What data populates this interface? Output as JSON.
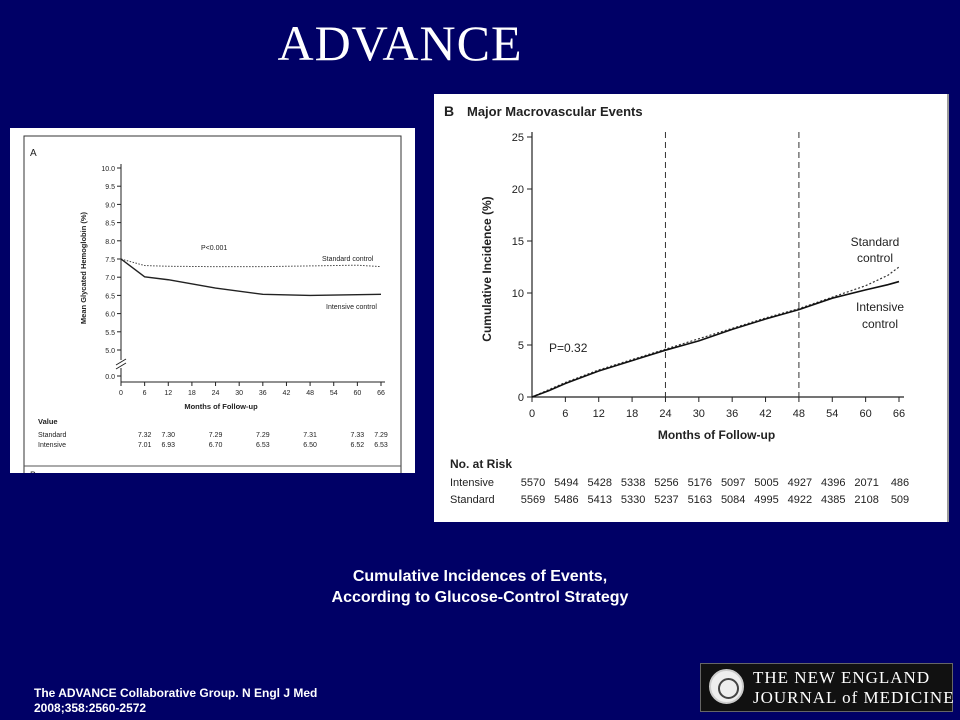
{
  "slide": {
    "title": "ADVANCE",
    "caption_line1": "Cumulative Incidences of Events,",
    "caption_line2": "According to Glucose-Control Strategy",
    "citation_line1": "The ADVANCE Collaborative Group. N Engl J Med",
    "citation_line2": "2008;358:2560-2572",
    "logo_line1": "THE NEW ENGLAND",
    "logo_line2": "JOURNAL of MEDICINE"
  },
  "colors": {
    "background": "#000066",
    "panel": "#ffffff",
    "text_light": "#ffffff",
    "ink": "#222222"
  },
  "chart_data": [
    {
      "type": "line",
      "panel_label": "A",
      "title": "",
      "xlabel": "Months of Follow-up",
      "ylabel": "Mean Glycated Hemoglobin (%)",
      "x_ticks": [
        0,
        6,
        12,
        18,
        24,
        30,
        36,
        42,
        48,
        54,
        60,
        66
      ],
      "y_ticks": [
        "0.0",
        "5.0",
        "5.5",
        "6.0",
        "6.5",
        "7.0",
        "7.5",
        "8.0",
        "8.5",
        "9.0",
        "9.5",
        "10.0"
      ],
      "y_axis_break": true,
      "ylim": [
        5.0,
        10.0
      ],
      "annotation": "P<0.001",
      "series": [
        {
          "name": "Standard control",
          "style": "dotted",
          "x": [
            0,
            6,
            12,
            24,
            36,
            48,
            60,
            66
          ],
          "values": [
            7.5,
            7.32,
            7.3,
            7.29,
            7.29,
            7.31,
            7.33,
            7.29
          ]
        },
        {
          "name": "Intensive control",
          "style": "solid",
          "x": [
            0,
            6,
            12,
            24,
            36,
            48,
            60,
            66
          ],
          "values": [
            7.5,
            7.01,
            6.93,
            6.7,
            6.53,
            6.5,
            6.52,
            6.53
          ]
        }
      ],
      "table": {
        "header": "Value",
        "rows": [
          {
            "label": "Standard",
            "cells": [
              {
                "x": 6,
                "text": "7.32"
              },
              {
                "x": 12,
                "text": "7.30"
              },
              {
                "x": 24,
                "text": "7.29"
              },
              {
                "x": 36,
                "text": "7.29"
              },
              {
                "x": 48,
                "text": "7.31"
              },
              {
                "x": 60,
                "text": "7.33"
              },
              {
                "x": 66,
                "text": "7.29"
              }
            ]
          },
          {
            "label": "Intensive",
            "cells": [
              {
                "x": 6,
                "text": "7.01"
              },
              {
                "x": 12,
                "text": "6.93"
              },
              {
                "x": 24,
                "text": "6.70"
              },
              {
                "x": 36,
                "text": "6.53"
              },
              {
                "x": 48,
                "text": "6.50"
              },
              {
                "x": 60,
                "text": "6.52"
              },
              {
                "x": 66,
                "text": "6.53"
              }
            ]
          }
        ]
      }
    },
    {
      "type": "line",
      "panel_label": "B",
      "title": "Major Macrovascular Events",
      "xlabel": "Months of Follow-up",
      "ylabel": "Cumulative Incidence (%)",
      "xlim": [
        0,
        66
      ],
      "ylim": [
        0,
        25
      ],
      "x_ticks": [
        0,
        6,
        12,
        18,
        24,
        30,
        36,
        42,
        48,
        54,
        60,
        66
      ],
      "y_ticks": [
        0,
        5,
        10,
        15,
        20,
        25
      ],
      "vlines": [
        24,
        48
      ],
      "annotation": "P=0.32",
      "series": [
        {
          "name": "Standard control",
          "style": "dotted",
          "x": [
            0,
            3,
            6,
            12,
            18,
            24,
            30,
            36,
            42,
            48,
            54,
            60,
            64,
            66
          ],
          "values": [
            0,
            0.7,
            1.4,
            2.6,
            3.6,
            4.6,
            5.6,
            6.6,
            7.6,
            8.5,
            9.6,
            10.7,
            11.7,
            12.5
          ]
        },
        {
          "name": "Intensive control",
          "style": "solid",
          "x": [
            0,
            3,
            6,
            12,
            18,
            24,
            30,
            36,
            42,
            48,
            54,
            60,
            64,
            66
          ],
          "values": [
            0,
            0.6,
            1.3,
            2.5,
            3.5,
            4.5,
            5.4,
            6.5,
            7.5,
            8.4,
            9.5,
            10.3,
            10.8,
            11.1
          ]
        }
      ],
      "at_risk": {
        "header": "No. at Risk",
        "rows": [
          {
            "label": "Intensive",
            "values": [
              "5570",
              "5494",
              "5428",
              "5338",
              "5256",
              "5176",
              "5097",
              "5005",
              "4927",
              "4396",
              "2071",
              "486"
            ]
          },
          {
            "label": "Standard",
            "values": [
              "5569",
              "5486",
              "5413",
              "5330",
              "5237",
              "5163",
              "5084",
              "4995",
              "4922",
              "4385",
              "2108",
              "509"
            ]
          }
        ]
      }
    }
  ]
}
